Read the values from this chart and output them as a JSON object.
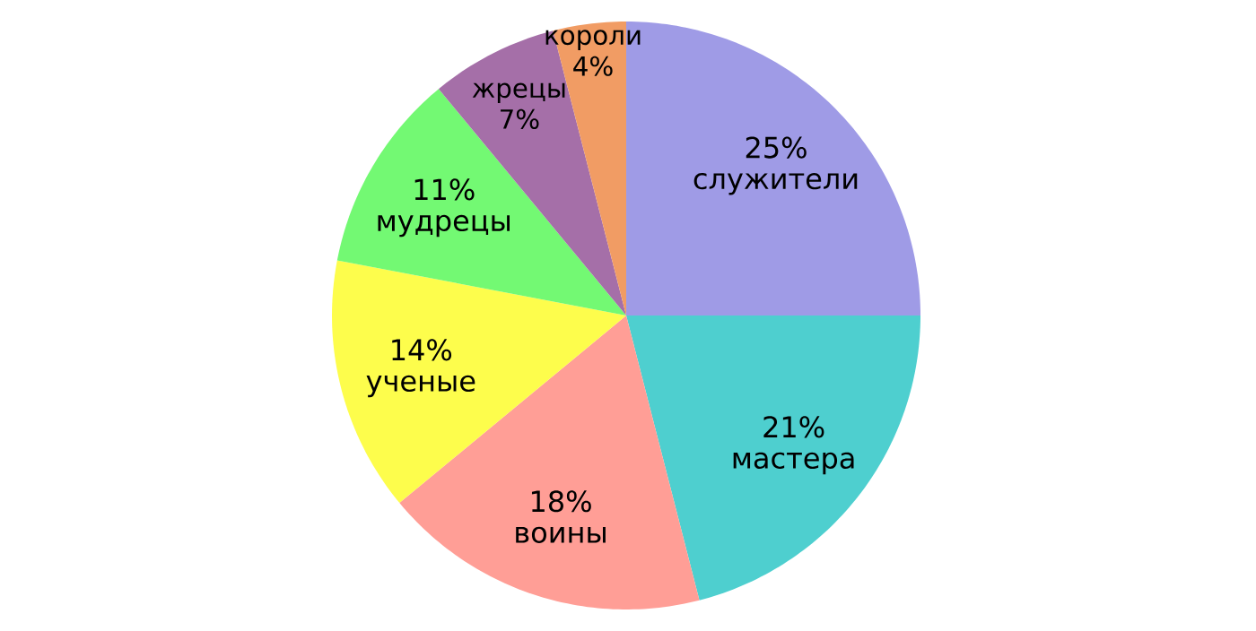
{
  "chart_data": {
    "type": "pie",
    "categories": [
      "служители",
      "мастера",
      "воины",
      "ученые",
      "мудрецы",
      "жрецы",
      "короли"
    ],
    "values": [
      25,
      21,
      18,
      14,
      11,
      7,
      4
    ],
    "value_labels": [
      "25%",
      "21%",
      "18%",
      "14%",
      "11%",
      "7%",
      "4%"
    ],
    "colors": [
      "#9f9be6",
      "#4ecfcf",
      "#ff9e96",
      "#fdfd4c",
      "#73f973",
      "#a56fa8",
      "#f19c64"
    ]
  }
}
